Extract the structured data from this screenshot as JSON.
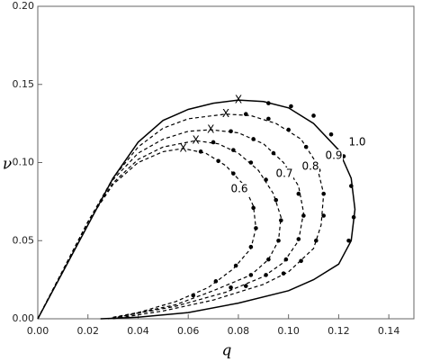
{
  "chart_data": {
    "type": "line",
    "xlabel": "q",
    "ylabel": "ν",
    "xlim": [
      0,
      0.15
    ],
    "ylim": [
      0,
      0.2
    ],
    "xticks": [
      {
        "value": 0,
        "label": "0.00"
      },
      {
        "value": 0.02,
        "label": "0.02"
      },
      {
        "value": 0.04,
        "label": "0.04"
      },
      {
        "value": 0.06,
        "label": "0.06"
      },
      {
        "value": 0.08,
        "label": "0.08"
      },
      {
        "value": 0.1,
        "label": "0.10"
      },
      {
        "value": 0.12,
        "label": "0.12"
      },
      {
        "value": 0.14,
        "label": "0.14"
      }
    ],
    "yticks": [
      {
        "value": 0,
        "label": "0.00"
      },
      {
        "value": 0.05,
        "label": "0.05"
      },
      {
        "value": 0.1,
        "label": "0.10"
      },
      {
        "value": 0.15,
        "label": "0.15"
      },
      {
        "value": 0.2,
        "label": "0.20"
      }
    ],
    "series": [
      {
        "name": "1.0",
        "color": "#000000",
        "dashed": false,
        "x": [
          0,
          0.01,
          0.02,
          0.03,
          0.04,
          0.05,
          0.06,
          0.07,
          0.08,
          0.09,
          0.1,
          0.11,
          0.12,
          0.125,
          0.1265,
          0.125,
          0.12,
          0.11,
          0.1,
          0.08,
          0.06,
          0.04,
          0.025
        ],
        "values": [
          0,
          0.03,
          0.06,
          0.09,
          0.113,
          0.127,
          0.134,
          0.138,
          0.14,
          0.139,
          0.135,
          0.125,
          0.108,
          0.09,
          0.07,
          0.05,
          0.035,
          0.025,
          0.018,
          0.01,
          0.004,
          0.001,
          0
        ],
        "dots_x": [
          0.092,
          0.101,
          0.11,
          0.117,
          0.122,
          0.125,
          0.126,
          0.124
        ],
        "dots_y": [
          0.138,
          0.136,
          0.13,
          0.118,
          0.104,
          0.085,
          0.065,
          0.05
        ],
        "peak": [
          0.08,
          0.14
        ]
      },
      {
        "name": "0.9",
        "color": "#000000",
        "dashed": true,
        "x": [
          0,
          0.01,
          0.02,
          0.03,
          0.04,
          0.05,
          0.06,
          0.075,
          0.085,
          0.095,
          0.105,
          0.111,
          0.114,
          0.113,
          0.11,
          0.1,
          0.09,
          0.07,
          0.05,
          0.03
        ],
        "values": [
          0,
          0.031,
          0.062,
          0.09,
          0.11,
          0.122,
          0.128,
          0.131,
          0.13,
          0.125,
          0.115,
          0.1,
          0.08,
          0.06,
          0.045,
          0.03,
          0.022,
          0.012,
          0.005,
          0
        ],
        "dots_x": [
          0.083,
          0.092,
          0.1,
          0.107,
          0.112,
          0.114,
          0.114,
          0.111,
          0.105,
          0.098
        ],
        "dots_y": [
          0.131,
          0.128,
          0.121,
          0.11,
          0.095,
          0.08,
          0.066,
          0.05,
          0.037,
          0.029
        ],
        "peak": [
          0.075,
          0.131
        ]
      },
      {
        "name": "0.8",
        "color": "#000000",
        "dashed": true,
        "x": [
          0,
          0.01,
          0.02,
          0.03,
          0.04,
          0.05,
          0.06,
          0.069,
          0.08,
          0.09,
          0.098,
          0.104,
          0.106,
          0.104,
          0.098,
          0.09,
          0.075,
          0.055,
          0.035,
          0.028
        ],
        "values": [
          0,
          0.031,
          0.062,
          0.089,
          0.106,
          0.115,
          0.12,
          0.121,
          0.119,
          0.112,
          0.1,
          0.085,
          0.068,
          0.05,
          0.036,
          0.027,
          0.017,
          0.008,
          0.002,
          0
        ],
        "dots_x": [
          0.077,
          0.086,
          0.094,
          0.1,
          0.104,
          0.106,
          0.104,
          0.099,
          0.091,
          0.083
        ],
        "dots_y": [
          0.12,
          0.115,
          0.106,
          0.094,
          0.08,
          0.066,
          0.051,
          0.038,
          0.028,
          0.021
        ],
        "peak": [
          0.069,
          0.121
        ]
      },
      {
        "name": "0.7",
        "color": "#000000",
        "dashed": true,
        "x": [
          0,
          0.01,
          0.02,
          0.03,
          0.04,
          0.05,
          0.063,
          0.072,
          0.08,
          0.088,
          0.094,
          0.097,
          0.096,
          0.092,
          0.085,
          0.07,
          0.055,
          0.035,
          0.028
        ],
        "values": [
          0,
          0.031,
          0.062,
          0.087,
          0.102,
          0.11,
          0.114,
          0.112,
          0.106,
          0.095,
          0.08,
          0.065,
          0.05,
          0.038,
          0.028,
          0.018,
          0.009,
          0.002,
          0
        ],
        "dots_x": [
          0.07,
          0.078,
          0.085,
          0.091,
          0.095,
          0.097,
          0.096,
          0.092,
          0.085,
          0.077
        ],
        "dots_y": [
          0.113,
          0.108,
          0.1,
          0.089,
          0.076,
          0.063,
          0.05,
          0.038,
          0.028,
          0.02
        ],
        "peak": [
          0.063,
          0.114
        ]
      },
      {
        "name": "0.6",
        "color": "#000000",
        "dashed": true,
        "x": [
          0,
          0.01,
          0.02,
          0.03,
          0.04,
          0.05,
          0.058,
          0.067,
          0.075,
          0.082,
          0.086,
          0.087,
          0.085,
          0.078,
          0.068,
          0.055,
          0.04,
          0.03
        ],
        "values": [
          0,
          0.031,
          0.062,
          0.086,
          0.1,
          0.107,
          0.109,
          0.106,
          0.098,
          0.086,
          0.072,
          0.058,
          0.045,
          0.032,
          0.02,
          0.011,
          0.004,
          0.001
        ],
        "dots_x": [
          0.065,
          0.072,
          0.078,
          0.083,
          0.086,
          0.087,
          0.085,
          0.079,
          0.071,
          0.062
        ],
        "dots_y": [
          0.107,
          0.101,
          0.093,
          0.083,
          0.071,
          0.058,
          0.046,
          0.034,
          0.024,
          0.015
        ],
        "peak": [
          0.058,
          0.109
        ]
      }
    ],
    "peak_label": "X"
  }
}
